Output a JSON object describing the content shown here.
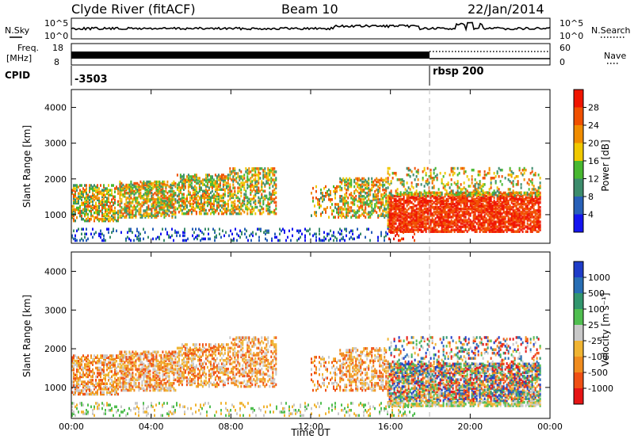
{
  "header": {
    "station": "Clyde River (fitACF)",
    "beam": "Beam 10",
    "date": "22/Jan/2014"
  },
  "top_strip": {
    "nsky_label": "N.Sky",
    "nsky_ticks": [
      "10^5",
      "10^0"
    ],
    "nsearch_label": "N.Search",
    "freq_label_1": "Freq.",
    "freq_label_2": "[MHz]",
    "freq_ticks": [
      "18",
      "8"
    ],
    "nave_label": "Nave",
    "nave_ticks": [
      "60",
      "0"
    ],
    "cpid_label": "CPID",
    "cpid_values": [
      "-3503",
      "rbsp 200"
    ]
  },
  "chart_data": [
    {
      "type": "heatmap",
      "name": "power",
      "ylabel": "Slant Range [km]",
      "xlabel": "",
      "x_ticks": [
        "00:00",
        "04:00",
        "08:00",
        "12:00",
        "16:00",
        "20:00",
        "00:00"
      ],
      "y_ticks": [
        "4000",
        "3000",
        "2000",
        "1000"
      ],
      "ylim": [
        200,
        4500
      ],
      "colorbar_label": "Power [dB]",
      "colorbar_ticks": [
        "4",
        "8",
        "12",
        "16",
        "20",
        "24",
        "28"
      ],
      "colors": [
        "#1414f0",
        "#2860b8",
        "#3c8c6c",
        "#48b830",
        "#f0c800",
        "#f08c00",
        "#f05000",
        "#f01400"
      ]
    },
    {
      "type": "heatmap",
      "name": "velocity",
      "ylabel": "Slant Range [km]",
      "xlabel": "Time UT",
      "x_ticks": [
        "00:00",
        "04:00",
        "08:00",
        "12:00",
        "16:00",
        "20:00",
        "00:00"
      ],
      "y_ticks": [
        "4000",
        "3000",
        "2000",
        "1000"
      ],
      "ylim": [
        200,
        4500
      ],
      "colorbar_label": "Velocity [m s⁻¹]",
      "colorbar_ticks": [
        "1000",
        "500",
        "100",
        "25",
        "-25",
        "-100",
        "-500",
        "-1000"
      ],
      "colors": [
        "#1e3cc8",
        "#286eb4",
        "#32966e",
        "#50be50",
        "#c8c8c8",
        "#f0b432",
        "#f08c1e",
        "#f05014",
        "#e61414"
      ]
    }
  ]
}
